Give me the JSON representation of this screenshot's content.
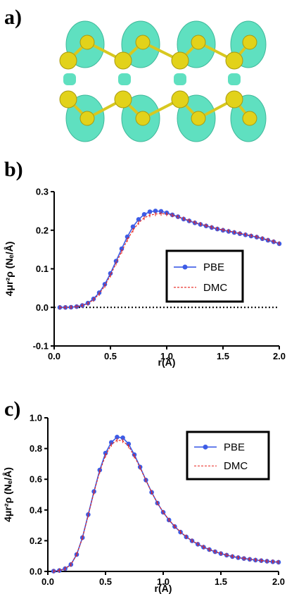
{
  "panels": {
    "a_label": "a)",
    "b_label": "b)",
    "c_label": "c)"
  },
  "colors": {
    "pbe": "#3d5ce6",
    "dmc": "#e8211a",
    "isosurface": "#5fe0c0",
    "atom": "#e2d21a",
    "bond": "#e2d21a"
  },
  "chart_data": [
    {
      "type": "line",
      "panel": "b",
      "xlabel": "r(Å)",
      "ylabel": "4μr²ρ (Nₑ/Å)",
      "xlim": [
        0,
        2.0
      ],
      "ylim": [
        -0.1,
        0.3
      ],
      "xticks": [
        "0.0",
        "0.5",
        "1.0",
        "1.5",
        "2.0"
      ],
      "yticks": [
        "-0.1",
        "0.0",
        "0.1",
        "0.2",
        "0.3"
      ],
      "zero_line": true,
      "legend_position": "center-right",
      "series": [
        {
          "name": "PBE",
          "style": "line-markers",
          "x": [
            0.05,
            0.1,
            0.15,
            0.2,
            0.25,
            0.3,
            0.35,
            0.4,
            0.45,
            0.5,
            0.55,
            0.6,
            0.65,
            0.7,
            0.75,
            0.8,
            0.85,
            0.9,
            0.95,
            1.0,
            1.05,
            1.1,
            1.15,
            1.2,
            1.25,
            1.3,
            1.35,
            1.4,
            1.45,
            1.5,
            1.55,
            1.6,
            1.65,
            1.7,
            1.75,
            1.8,
            1.85,
            1.9,
            1.95,
            2.0
          ],
          "y": [
            0.0,
            0.0,
            0.0005,
            0.002,
            0.005,
            0.011,
            0.022,
            0.038,
            0.06,
            0.088,
            0.12,
            0.152,
            0.183,
            0.209,
            0.228,
            0.241,
            0.248,
            0.25,
            0.249,
            0.245,
            0.24,
            0.235,
            0.229,
            0.224,
            0.219,
            0.215,
            0.211,
            0.207,
            0.203,
            0.2,
            0.197,
            0.194,
            0.191,
            0.188,
            0.185,
            0.182,
            0.178,
            0.174,
            0.17,
            0.165
          ]
        },
        {
          "name": "DMC",
          "style": "dashed",
          "x": [
            0.05,
            0.1,
            0.15,
            0.2,
            0.25,
            0.3,
            0.35,
            0.4,
            0.45,
            0.5,
            0.55,
            0.6,
            0.65,
            0.7,
            0.75,
            0.8,
            0.85,
            0.9,
            0.95,
            1.0,
            1.05,
            1.1,
            1.15,
            1.2,
            1.25,
            1.3,
            1.35,
            1.4,
            1.45,
            1.5,
            1.55,
            1.6,
            1.65,
            1.7,
            1.75,
            1.8,
            1.85,
            1.9,
            1.95,
            2.0
          ],
          "y": [
            0.0,
            0.0,
            0.0005,
            0.002,
            0.005,
            0.01,
            0.02,
            0.035,
            0.056,
            0.083,
            0.114,
            0.145,
            0.175,
            0.2,
            0.219,
            0.232,
            0.239,
            0.242,
            0.243,
            0.242,
            0.239,
            0.235,
            0.23,
            0.225,
            0.22,
            0.216,
            0.212,
            0.208,
            0.204,
            0.201,
            0.198,
            0.195,
            0.192,
            0.189,
            0.186,
            0.183,
            0.179,
            0.175,
            0.171,
            0.166
          ]
        }
      ]
    },
    {
      "type": "line",
      "panel": "c",
      "xlabel": "r(Å)",
      "ylabel": "4μr²ρ (Nₑ/Å)",
      "xlim": [
        0,
        2.0
      ],
      "ylim": [
        0,
        1.0
      ],
      "xticks": [
        "0.0",
        "0.5",
        "1.0",
        "1.5",
        "2.0"
      ],
      "yticks": [
        "0.0",
        "0.2",
        "0.4",
        "0.6",
        "0.8",
        "1.0"
      ],
      "zero_line": false,
      "legend_position": "top-right",
      "series": [
        {
          "name": "PBE",
          "style": "line-markers",
          "x": [
            0.05,
            0.1,
            0.15,
            0.2,
            0.25,
            0.3,
            0.35,
            0.4,
            0.45,
            0.5,
            0.55,
            0.6,
            0.65,
            0.7,
            0.75,
            0.8,
            0.85,
            0.9,
            0.95,
            1.0,
            1.05,
            1.1,
            1.15,
            1.2,
            1.25,
            1.3,
            1.35,
            1.4,
            1.45,
            1.5,
            1.55,
            1.6,
            1.65,
            1.7,
            1.75,
            1.8,
            1.85,
            1.9,
            1.95,
            2.0
          ],
          "y": [
            0.002,
            0.006,
            0.018,
            0.045,
            0.11,
            0.22,
            0.37,
            0.52,
            0.66,
            0.77,
            0.84,
            0.875,
            0.87,
            0.83,
            0.76,
            0.68,
            0.595,
            0.515,
            0.445,
            0.385,
            0.335,
            0.292,
            0.256,
            0.225,
            0.199,
            0.177,
            0.158,
            0.142,
            0.128,
            0.116,
            0.106,
            0.097,
            0.09,
            0.084,
            0.079,
            0.074,
            0.07,
            0.066,
            0.063,
            0.06
          ]
        },
        {
          "name": "DMC",
          "style": "dashed",
          "x": [
            0.05,
            0.1,
            0.15,
            0.2,
            0.25,
            0.3,
            0.35,
            0.4,
            0.45,
            0.5,
            0.55,
            0.6,
            0.65,
            0.7,
            0.75,
            0.8,
            0.85,
            0.9,
            0.95,
            1.0,
            1.05,
            1.1,
            1.15,
            1.2,
            1.25,
            1.3,
            1.35,
            1.4,
            1.45,
            1.5,
            1.55,
            1.6,
            1.65,
            1.7,
            1.75,
            1.8,
            1.85,
            1.9,
            1.95,
            2.0
          ],
          "y": [
            0.002,
            0.006,
            0.018,
            0.045,
            0.11,
            0.218,
            0.365,
            0.515,
            0.65,
            0.755,
            0.825,
            0.855,
            0.85,
            0.815,
            0.75,
            0.675,
            0.593,
            0.515,
            0.446,
            0.386,
            0.336,
            0.293,
            0.257,
            0.226,
            0.2,
            0.178,
            0.159,
            0.143,
            0.129,
            0.117,
            0.107,
            0.098,
            0.091,
            0.085,
            0.08,
            0.075,
            0.071,
            0.067,
            0.064,
            0.061
          ]
        }
      ]
    }
  ]
}
